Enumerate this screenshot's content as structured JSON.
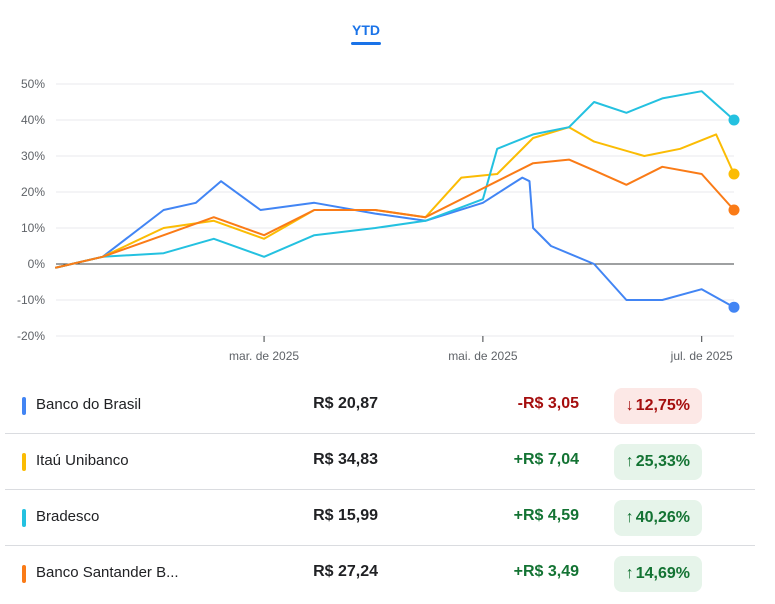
{
  "tab": {
    "label": "YTD"
  },
  "chart_data": {
    "type": "line",
    "title": "",
    "xlabel": "",
    "ylabel": "",
    "x_ticks": [
      "mar. de 2025",
      "mai. de 2025",
      "jul. de 2025"
    ],
    "y_ticks": [
      "50%",
      "40%",
      "30%",
      "20%",
      "10%",
      "0%",
      "-10%",
      "-20%"
    ],
    "ylim": [
      -20,
      50
    ],
    "grid": true,
    "series": [
      {
        "name": "Banco do Brasil",
        "color": "#4285f4",
        "x": [
          "2025-01-02",
          "2025-01-15",
          "2025-02-01",
          "2025-02-10",
          "2025-02-17",
          "2025-02-28",
          "2025-03-15",
          "2025-04-01",
          "2025-04-15",
          "2025-05-01",
          "2025-05-12",
          "2025-05-14",
          "2025-05-15",
          "2025-05-20",
          "2025-06-01",
          "2025-06-10",
          "2025-06-20",
          "2025-07-01",
          "2025-07-10"
        ],
        "values": [
          -1,
          2,
          15,
          17,
          23,
          15,
          17,
          14,
          12,
          17,
          24,
          23,
          10,
          5,
          0,
          -10,
          -10,
          -7,
          -12
        ]
      },
      {
        "name": "Itaú Unibanco",
        "color": "#fbbc04",
        "x": [
          "2025-01-02",
          "2025-01-15",
          "2025-02-01",
          "2025-02-15",
          "2025-03-01",
          "2025-03-15",
          "2025-04-01",
          "2025-04-15",
          "2025-04-25",
          "2025-05-05",
          "2025-05-15",
          "2025-05-25",
          "2025-06-01",
          "2025-06-15",
          "2025-06-25",
          "2025-07-05",
          "2025-07-10"
        ],
        "values": [
          -1,
          2,
          10,
          12,
          7,
          15,
          15,
          13,
          24,
          25,
          35,
          38,
          34,
          30,
          32,
          36,
          25
        ]
      },
      {
        "name": "Bradesco",
        "color": "#24c1e0",
        "x": [
          "2025-01-02",
          "2025-01-15",
          "2025-02-01",
          "2025-02-15",
          "2025-03-01",
          "2025-03-15",
          "2025-04-01",
          "2025-04-15",
          "2025-05-01",
          "2025-05-05",
          "2025-05-15",
          "2025-05-25",
          "2025-06-01",
          "2025-06-10",
          "2025-06-20",
          "2025-07-01",
          "2025-07-10"
        ],
        "values": [
          -1,
          2,
          3,
          7,
          2,
          8,
          10,
          12,
          18,
          32,
          36,
          38,
          45,
          42,
          46,
          48,
          40
        ]
      },
      {
        "name": "Banco Santander Brasil",
        "color": "#fa7b17",
        "x": [
          "2025-01-02",
          "2025-01-15",
          "2025-02-01",
          "2025-02-15",
          "2025-03-01",
          "2025-03-15",
          "2025-04-01",
          "2025-04-15",
          "2025-05-01",
          "2025-05-05",
          "2025-05-15",
          "2025-05-25",
          "2025-06-01",
          "2025-06-10",
          "2025-06-20",
          "2025-07-01",
          "2025-07-10"
        ],
        "values": [
          -1,
          2,
          8,
          13,
          8,
          15,
          15,
          13,
          21,
          23,
          28,
          29,
          26,
          22,
          27,
          25,
          15
        ]
      }
    ],
    "x_tick_dates": [
      "2025-03-01",
      "2025-05-01",
      "2025-07-01"
    ],
    "x_range": [
      "2025-01-02",
      "2025-07-10"
    ]
  },
  "rows": [
    {
      "name": "Banco do Brasil",
      "color": "#4285f4",
      "price": "R$ 20,87",
      "change": "-R$ 3,05",
      "pct": "12,75%",
      "dir": "down",
      "arrow": "↓"
    },
    {
      "name": "Itaú Unibanco",
      "color": "#fbbc04",
      "price": "R$ 34,83",
      "change": "+R$ 7,04",
      "pct": "25,33%",
      "dir": "up",
      "arrow": "↑"
    },
    {
      "name": "Bradesco",
      "color": "#24c1e0",
      "price": "R$ 15,99",
      "change": "+R$ 4,59",
      "pct": "40,26%",
      "dir": "up",
      "arrow": "↑"
    },
    {
      "name": "Banco Santander B...",
      "color": "#fa7b17",
      "price": "R$ 27,24",
      "change": "+R$ 3,49",
      "pct": "14,69%",
      "dir": "up",
      "arrow": "↑"
    }
  ]
}
